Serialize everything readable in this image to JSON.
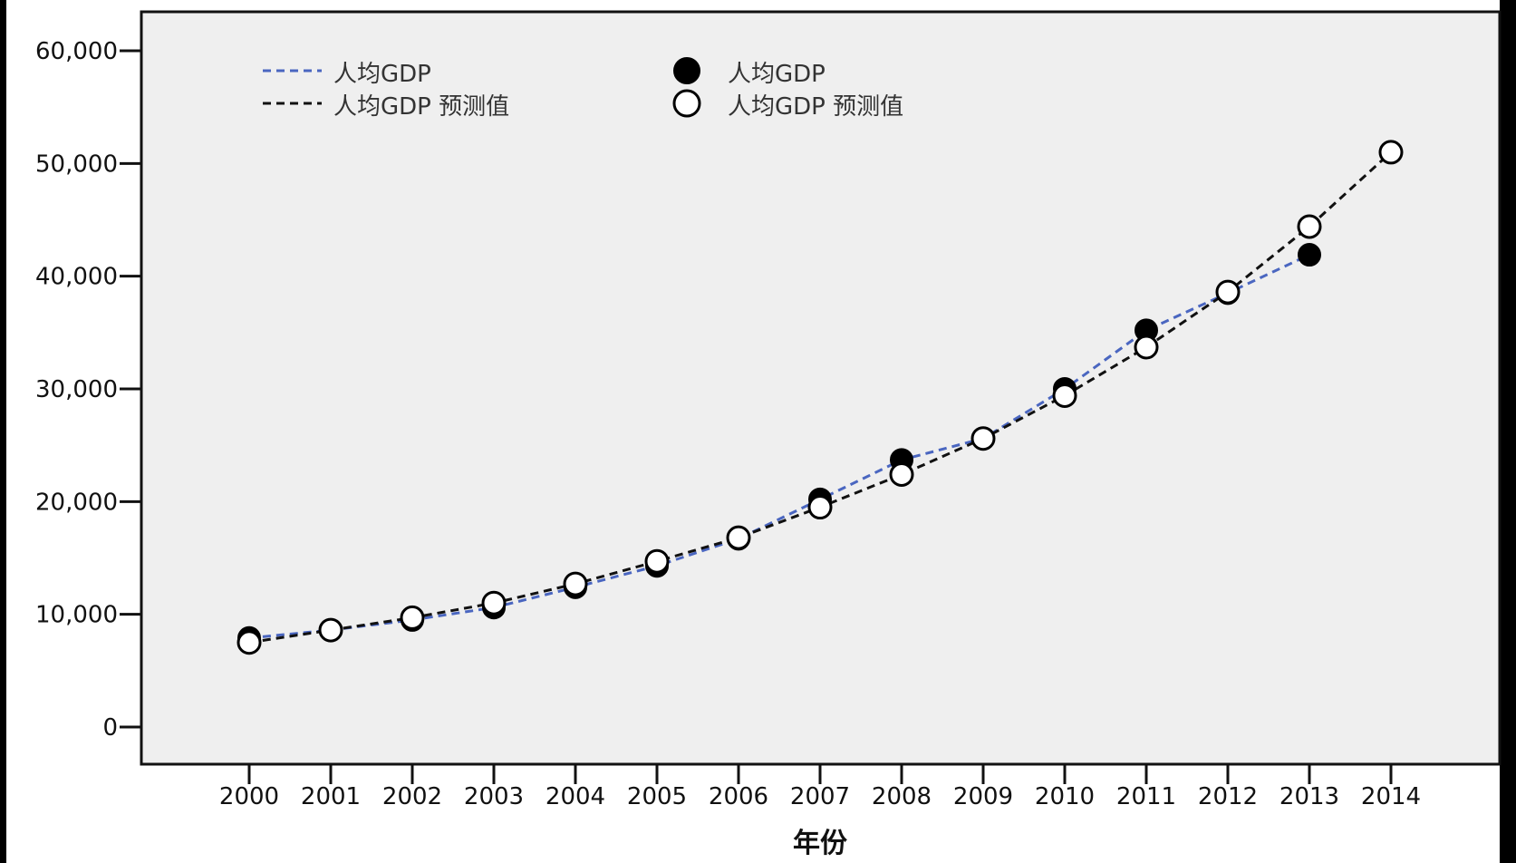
{
  "chart_data": {
    "type": "line",
    "title": "",
    "xlabel": "年份",
    "ylabel": "",
    "categories": [
      "2000",
      "2001",
      "2002",
      "2003",
      "2004",
      "2005",
      "2006",
      "2007",
      "2008",
      "2009",
      "2010",
      "2011",
      "2012",
      "2013",
      "2014"
    ],
    "ylim": [
      0,
      60000
    ],
    "yticks": [
      0,
      10000,
      20000,
      30000,
      40000,
      50000,
      60000
    ],
    "ytick_labels": [
      "0",
      "10,000",
      "20,000",
      "30,000",
      "40,000",
      "50,000",
      "60,000"
    ],
    "grid": false,
    "legend_position": "top-left",
    "series": [
      {
        "name": "人均GDP",
        "line_style": "dashed",
        "line_color": "#4a66c0",
        "marker": "filled-circle",
        "values": [
          7900,
          8600,
          9500,
          10600,
          12400,
          14300,
          16700,
          20200,
          23700,
          25600,
          30000,
          35200,
          38500,
          41900,
          null
        ]
      },
      {
        "name": "人均GDP 预测值",
        "line_style": "dashed",
        "line_color": "#111111",
        "marker": "open-circle",
        "values": [
          7500,
          8600,
          9700,
          11000,
          12700,
          14700,
          16800,
          19500,
          22400,
          25600,
          29400,
          33700,
          38600,
          44400,
          51000
        ]
      }
    ],
    "legend": {
      "line_entries": [
        "人均GDP",
        "人均GDP 预测值"
      ],
      "marker_entries": [
        "人均GDP",
        "人均GDP 预测值"
      ]
    },
    "colors": {
      "page_background": "#ffffff",
      "plot_background": "#efefef",
      "axis": "#111111",
      "series_1_line": "#4a66c0",
      "series_2_line": "#111111",
      "marker_filled": "#000000",
      "marker_open_fill": "#ffffff"
    }
  }
}
